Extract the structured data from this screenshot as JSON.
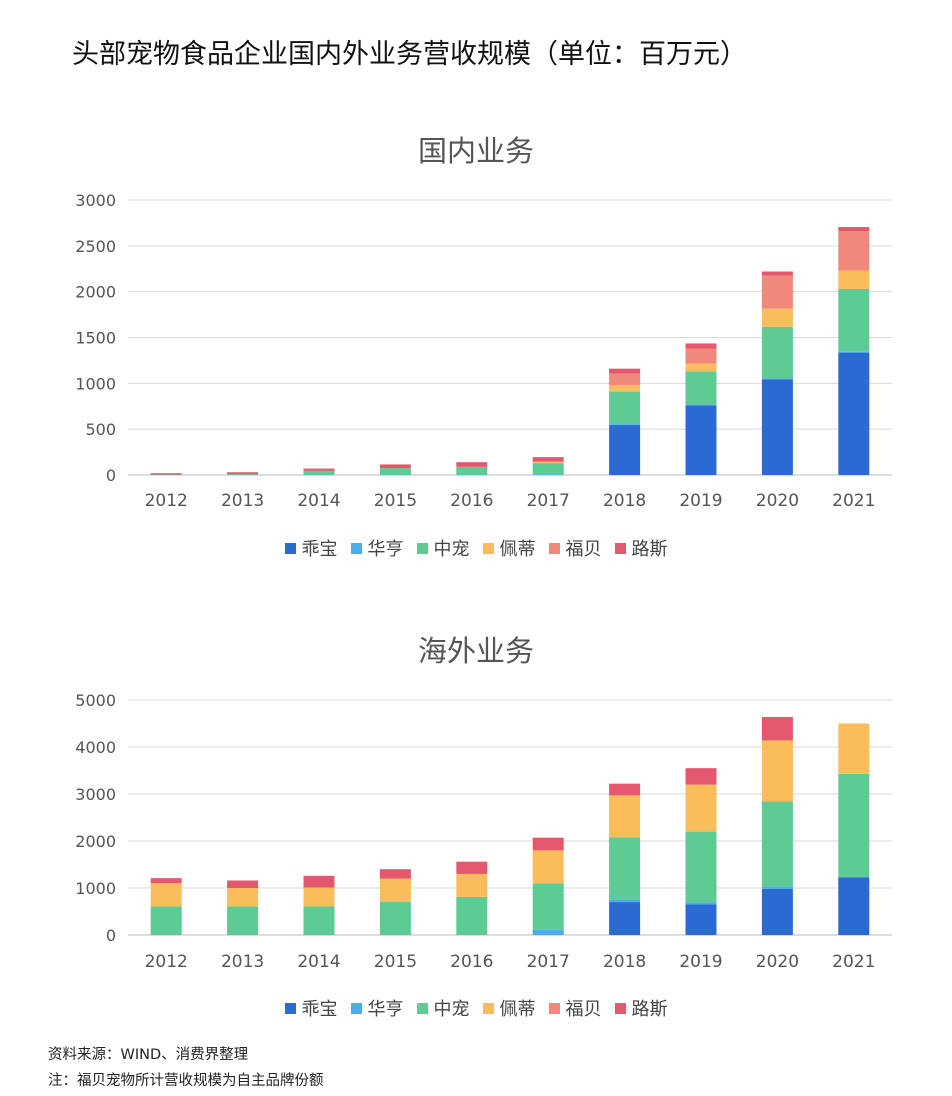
{
  "title": "头部宠物食品企业国内外业务营收规模（单位：百万元）",
  "footnotes": {
    "source": "资料来源：WIND、消费界整理",
    "note": "注：福贝宠物所计营收规模为自主品牌份额"
  },
  "chart_data": [
    {
      "type": "bar",
      "stacked": true,
      "title": "国内业务",
      "categories": [
        "2012",
        "2013",
        "2014",
        "2015",
        "2016",
        "2017",
        "2018",
        "2019",
        "2020",
        "2021"
      ],
      "ylim": [
        0,
        3000
      ],
      "yticks": [
        0,
        500,
        1000,
        1500,
        2000,
        2500,
        3000
      ],
      "grid": true,
      "legend_position": "bottom",
      "series": [
        {
          "name": "乖宝",
          "color": "#2b6bd1",
          "values": [
            0,
            0,
            0,
            0,
            0,
            0,
            545,
            760,
            1045,
            1335
          ]
        },
        {
          "name": "华亨",
          "color": "#4aaee8",
          "values": [
            0,
            0,
            5,
            5,
            5,
            10,
            10,
            10,
            10,
            10
          ]
        },
        {
          "name": "中宠",
          "color": "#5dcb93",
          "values": [
            5,
            10,
            40,
            70,
            85,
            120,
            355,
            360,
            560,
            685
          ]
        },
        {
          "name": "佩蒂",
          "color": "#fbbd5c",
          "values": [
            0,
            0,
            0,
            0,
            0,
            15,
            70,
            85,
            200,
            200
          ]
        },
        {
          "name": "福贝",
          "color": "#f0887b",
          "values": [
            0,
            0,
            0,
            0,
            0,
            0,
            125,
            165,
            360,
            430
          ]
        },
        {
          "name": "路斯",
          "color": "#e4586f",
          "values": [
            15,
            20,
            25,
            40,
            50,
            50,
            55,
            55,
            45,
            45
          ]
        }
      ]
    },
    {
      "type": "bar",
      "stacked": true,
      "title": "海外业务",
      "categories": [
        "2012",
        "2013",
        "2014",
        "2015",
        "2016",
        "2017",
        "2018",
        "2019",
        "2020",
        "2021"
      ],
      "ylim": [
        0,
        5000
      ],
      "yticks": [
        0,
        1000,
        2000,
        3000,
        4000,
        5000
      ],
      "grid": true,
      "legend_position": "bottom",
      "series": [
        {
          "name": "乖宝",
          "color": "#2b6bd1",
          "values": [
            0,
            0,
            0,
            0,
            0,
            0,
            700,
            650,
            980,
            1230
          ]
        },
        {
          "name": "华亨",
          "color": "#4aaee8",
          "values": [
            0,
            0,
            0,
            0,
            0,
            110,
            60,
            40,
            50,
            0
          ]
        },
        {
          "name": "中宠",
          "color": "#5dcb93",
          "values": [
            610,
            610,
            610,
            710,
            810,
            990,
            1320,
            1510,
            1810,
            2200
          ]
        },
        {
          "name": "佩蒂",
          "color": "#fbbd5c",
          "values": [
            490,
            390,
            400,
            490,
            490,
            700,
            890,
            1000,
            1300,
            1070
          ]
        },
        {
          "name": "福贝",
          "color": "#f0887b",
          "values": [
            0,
            0,
            0,
            0,
            0,
            0,
            0,
            0,
            0,
            0
          ]
        },
        {
          "name": "路斯",
          "color": "#e4586f",
          "values": [
            110,
            160,
            250,
            200,
            260,
            270,
            250,
            350,
            500,
            0
          ]
        }
      ]
    }
  ]
}
